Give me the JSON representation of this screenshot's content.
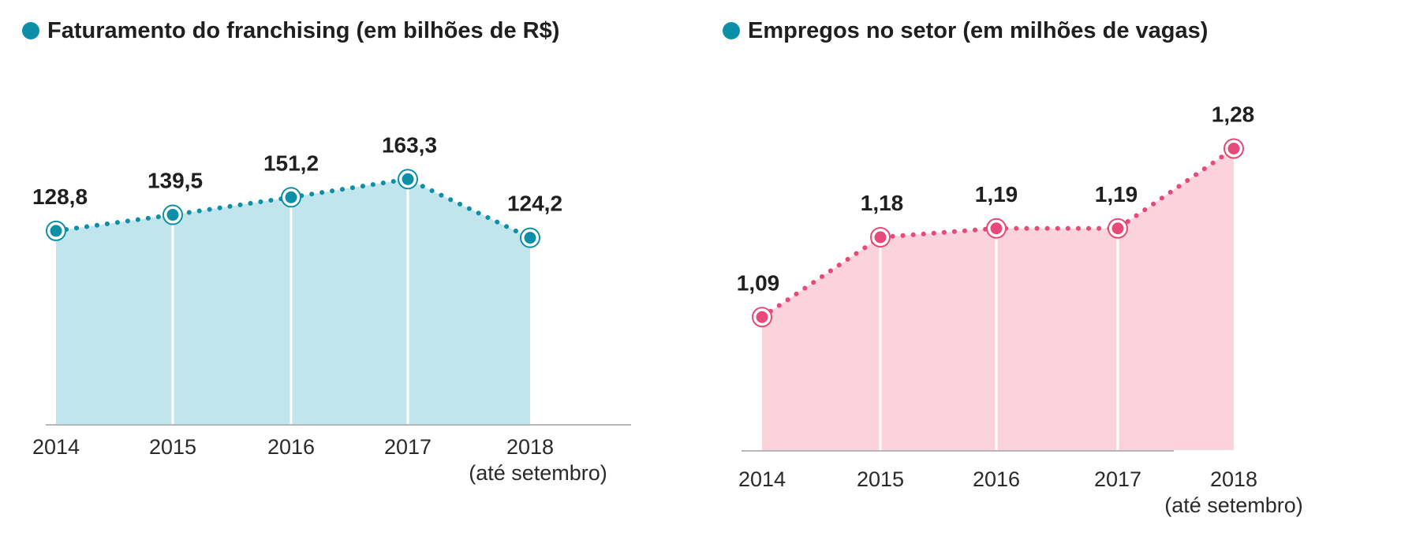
{
  "chart_data": [
    {
      "type": "area",
      "title": "Faturamento do franchising (em bilhões de R$)",
      "categories": [
        "2014",
        "2015",
        "2016",
        "2017",
        "2018"
      ],
      "category_notes": [
        "",
        "",
        "",
        "",
        "(até setembro)"
      ],
      "values": [
        128.8,
        139.5,
        151.2,
        163.3,
        124.2
      ],
      "value_labels": [
        "128,8",
        "139,5",
        "151,2",
        "163,3",
        "124,2"
      ],
      "ylim": [
        0,
        175
      ],
      "xlabel": "",
      "ylabel": "",
      "grid": false,
      "colors": {
        "line": "#0e8fa8",
        "fill": "#c1e5ec",
        "marker": "#0e8fa8",
        "title_dot": "#0e8fa8"
      }
    },
    {
      "type": "area",
      "title": "Empregos no setor (em milhões de vagas)",
      "categories": [
        "2014",
        "2015",
        "2016",
        "2017",
        "2018"
      ],
      "category_notes": [
        "",
        "",
        "",
        "",
        "(até setembro)"
      ],
      "values": [
        1.09,
        1.18,
        1.19,
        1.19,
        1.28
      ],
      "value_labels": [
        "1,09",
        "1,18",
        "1,19",
        "1,19",
        "1,28"
      ],
      "ylim": [
        0.94,
        1.3
      ],
      "xlabel": "",
      "ylabel": "",
      "grid": false,
      "colors": {
        "line": "#e8487a",
        "fill": "#fbd3dd",
        "marker": "#e8487a",
        "title_dot": "#0e8fa8"
      }
    }
  ]
}
